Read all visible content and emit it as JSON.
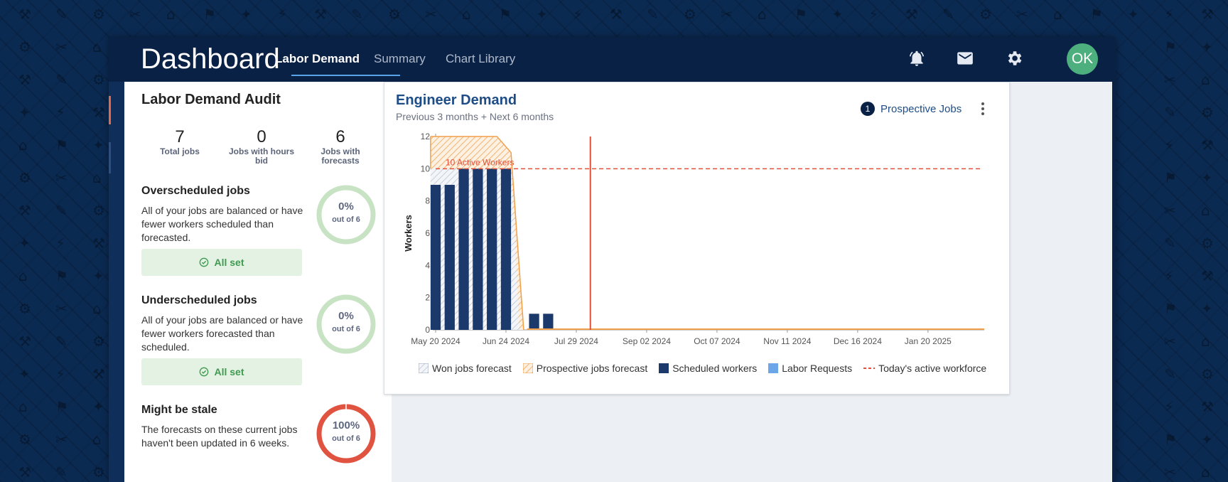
{
  "app": {
    "title": "Dashboard"
  },
  "nav": {
    "tabs": [
      {
        "label": "Labor Demand",
        "active": true
      },
      {
        "label": "Summary",
        "active": false
      },
      {
        "label": "Chart Library",
        "active": false
      }
    ],
    "icons": [
      "bell-icon",
      "mail-icon",
      "gear-icon"
    ],
    "avatar": "OK"
  },
  "audit": {
    "title": "Labor Demand Audit",
    "stats": [
      {
        "value": "7",
        "label": "Total jobs"
      },
      {
        "value": "0",
        "label": "Jobs with hours bid"
      },
      {
        "value": "6",
        "label": "Jobs with forecasts"
      }
    ],
    "sections": [
      {
        "title": "Overscheduled jobs",
        "desc": "All of your jobs are balanced or have fewer workers scheduled than forecasted.",
        "button": "All set",
        "pct": "0%",
        "of": "out of 6",
        "fraction": 0,
        "ring_color": "#c8e3c4"
      },
      {
        "title": "Underscheduled jobs",
        "desc": "All of your jobs are balanced or have fewer workers forecasted than scheduled.",
        "button": "All set",
        "pct": "0%",
        "of": "out of 6",
        "fraction": 0,
        "ring_color": "#c8e3c4"
      },
      {
        "title": "Might be stale",
        "desc": "The forecasts on these current jobs haven't been updated in 6 weeks.",
        "pct": "100%",
        "of": "out of 6",
        "fraction": 1,
        "ring_color": "#e05340"
      }
    ]
  },
  "chart_card": {
    "title": "Engineer Demand",
    "subtitle": "Previous 3 months + Next 6 months",
    "prospective_count": "1",
    "prospective_label": "Prospective Jobs"
  },
  "chart_data": {
    "type": "bar",
    "ylabel": "Workers",
    "ylim": [
      0,
      12
    ],
    "yticks": [
      0,
      2,
      4,
      6,
      8,
      10,
      12
    ],
    "xtick_labels": [
      "May 20 2024",
      "Jun 24 2024",
      "Jul 29 2024",
      "Sep 02 2024",
      "Oct 07 2024",
      "Nov 11 2024",
      "Dec 16 2024",
      "Jan 20 2025"
    ],
    "weeks": [
      "May 20 2024",
      "May 27 2024",
      "Jun 03 2024",
      "Jun 10 2024",
      "Jun 17 2024",
      "Jun 24 2024",
      "Jul 01 2024",
      "Jul 08 2024",
      "Jul 15 2024"
    ],
    "series": [
      {
        "name": "Scheduled workers",
        "values": [
          9,
          9,
          10,
          10,
          10,
          10,
          0,
          1,
          1
        ],
        "color": "#1b3a6b"
      },
      {
        "name": "Won jobs forecast",
        "values": [
          10,
          10,
          10,
          10,
          10,
          10,
          0,
          0,
          0
        ],
        "color": "#9aa7c2"
      },
      {
        "name": "Prospective jobs forecast",
        "values": [
          12,
          12,
          12,
          12,
          12,
          11,
          0,
          0,
          0
        ],
        "color": "#f0a04b"
      }
    ],
    "active_workforce": {
      "value": 10,
      "label": "10 Active Workers",
      "color": "#e0503a"
    },
    "today_marker": "Aug 05 2024",
    "legend": [
      {
        "label": "Won jobs forecast",
        "style": "hatch-gray"
      },
      {
        "label": "Prospective jobs forecast",
        "style": "hatch-orange"
      },
      {
        "label": "Scheduled workers",
        "style": "solid-navy"
      },
      {
        "label": "Labor Requests",
        "style": "solid-blue"
      },
      {
        "label": "Today's active workforce",
        "style": "dashed-red"
      }
    ],
    "legend_position": "bottom",
    "grid": false
  }
}
